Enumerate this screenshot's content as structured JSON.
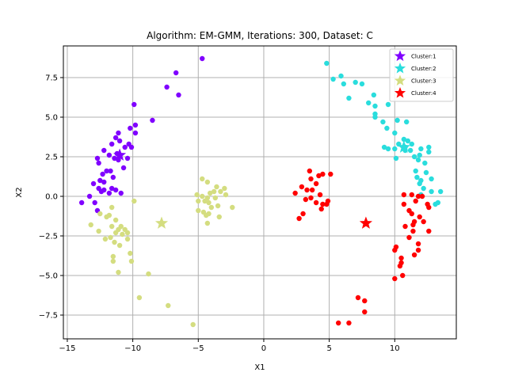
{
  "chart_data": {
    "type": "scatter",
    "title": "Algorithm: EM-GMM, Iterations: 300, Dataset: C",
    "xlabel": "X1",
    "ylabel": "X2",
    "xlim": [
      -15.3,
      14.7
    ],
    "ylim": [
      -9.0,
      9.5
    ],
    "xticks": [
      -15,
      -10,
      -5,
      0,
      5,
      10
    ],
    "yticks": [
      -7.5,
      -5.0,
      -2.5,
      0.0,
      2.5,
      5.0,
      7.5
    ],
    "grid": true,
    "legend_position": "top-right",
    "clusters": [
      {
        "name": "Cluster:1",
        "color": "#8000ff",
        "center": [
          -11.0,
          2.6
        ],
        "points": [
          [
            -4.7,
            8.7
          ],
          [
            -6.7,
            7.8
          ],
          [
            -7.4,
            6.9
          ],
          [
            -6.5,
            6.4
          ],
          [
            -9.9,
            5.8
          ],
          [
            -8.5,
            4.8
          ],
          [
            -9.8,
            4.5
          ],
          [
            -11.1,
            4.0
          ],
          [
            -10.2,
            4.3
          ],
          [
            -11.3,
            3.7
          ],
          [
            -11.0,
            3.5
          ],
          [
            -9.8,
            4.0
          ],
          [
            -10.3,
            3.3
          ],
          [
            -10.6,
            3.1
          ],
          [
            -11.6,
            3.3
          ],
          [
            -10.1,
            3.1
          ],
          [
            -12.2,
            2.9
          ],
          [
            -11.2,
            2.7
          ],
          [
            -11.8,
            2.6
          ],
          [
            -11.4,
            2.4
          ],
          [
            -10.4,
            2.4
          ],
          [
            -12.6,
            2.1
          ],
          [
            -12.7,
            2.4
          ],
          [
            -11.1,
            2.3
          ],
          [
            -10.7,
            1.8
          ],
          [
            -12.0,
            1.6
          ],
          [
            -11.7,
            1.6
          ],
          [
            -12.3,
            1.4
          ],
          [
            -11.5,
            1.2
          ],
          [
            -12.5,
            1.0
          ],
          [
            -12.2,
            0.9
          ],
          [
            -13.0,
            0.8
          ],
          [
            -12.6,
            0.5
          ],
          [
            -12.4,
            0.3
          ],
          [
            -11.6,
            0.5
          ],
          [
            -12.2,
            0.4
          ],
          [
            -11.3,
            0.4
          ],
          [
            -11.8,
            0.2
          ],
          [
            -10.9,
            0.2
          ],
          [
            -13.3,
            0.0
          ],
          [
            -13.9,
            -0.4
          ],
          [
            -12.9,
            -0.4
          ],
          [
            -12.7,
            -0.9
          ]
        ]
      },
      {
        "name": "Cluster:2",
        "color": "#2adddd",
        "center": [
          10.7,
          3.1
        ],
        "points": [
          [
            4.8,
            8.4
          ],
          [
            5.3,
            7.4
          ],
          [
            5.9,
            7.6
          ],
          [
            6.1,
            7.1
          ],
          [
            7.0,
            7.2
          ],
          [
            7.5,
            7.1
          ],
          [
            8.4,
            6.4
          ],
          [
            6.5,
            6.2
          ],
          [
            8.0,
            5.9
          ],
          [
            8.5,
            5.7
          ],
          [
            9.5,
            5.8
          ],
          [
            8.5,
            5.0
          ],
          [
            8.5,
            5.2
          ],
          [
            9.1,
            4.7
          ],
          [
            9.4,
            4.3
          ],
          [
            10.2,
            4.8
          ],
          [
            10.9,
            4.7
          ],
          [
            10.0,
            4.0
          ],
          [
            10.7,
            3.6
          ],
          [
            11.0,
            3.5
          ],
          [
            10.8,
            3.1
          ],
          [
            10.3,
            3.3
          ],
          [
            11.3,
            3.3
          ],
          [
            9.2,
            3.1
          ],
          [
            9.5,
            3.0
          ],
          [
            10.0,
            3.0
          ],
          [
            10.8,
            2.9
          ],
          [
            11.2,
            2.9
          ],
          [
            12.0,
            3.0
          ],
          [
            12.6,
            3.1
          ],
          [
            12.6,
            2.8
          ],
          [
            11.5,
            2.5
          ],
          [
            11.8,
            2.3
          ],
          [
            11.9,
            2.6
          ],
          [
            12.3,
            2.1
          ],
          [
            10.1,
            2.4
          ],
          [
            11.6,
            1.6
          ],
          [
            12.4,
            1.5
          ],
          [
            11.7,
            1.2
          ],
          [
            12.0,
            1.0
          ],
          [
            12.8,
            1.1
          ],
          [
            11.9,
            0.8
          ],
          [
            12.2,
            0.5
          ],
          [
            12.8,
            0.3
          ],
          [
            13.5,
            0.3
          ],
          [
            12.0,
            0.1
          ],
          [
            13.1,
            -0.5
          ],
          [
            13.3,
            -0.4
          ]
        ]
      },
      {
        "name": "Cluster:3",
        "color": "#d4dd80",
        "center": [
          -7.8,
          -1.7
        ],
        "points": [
          [
            -4.7,
            1.1
          ],
          [
            -4.3,
            0.9
          ],
          [
            -3.6,
            0.6
          ],
          [
            -3.0,
            0.5
          ],
          [
            -4.1,
            0.2
          ],
          [
            -3.8,
            0.3
          ],
          [
            -3.3,
            0.3
          ],
          [
            -4.7,
            0.0
          ],
          [
            -5.1,
            0.1
          ],
          [
            -2.9,
            0.1
          ],
          [
            -4.3,
            -0.1
          ],
          [
            -3.7,
            -0.1
          ],
          [
            -4.5,
            -0.3
          ],
          [
            -5.0,
            -0.3
          ],
          [
            -4.2,
            -0.4
          ],
          [
            -3.5,
            -0.6
          ],
          [
            -2.4,
            -0.7
          ],
          [
            -4.0,
            -0.7
          ],
          [
            -5.0,
            -0.9
          ],
          [
            -4.6,
            -1.0
          ],
          [
            -4.2,
            -1.1
          ],
          [
            -4.4,
            -1.2
          ],
          [
            -3.4,
            -1.3
          ],
          [
            -4.3,
            -1.7
          ],
          [
            -9.9,
            -0.3
          ],
          [
            -11.6,
            -0.7
          ],
          [
            -11.8,
            -1.2
          ],
          [
            -12.5,
            -1.1
          ],
          [
            -12.0,
            -1.3
          ],
          [
            -11.3,
            -1.5
          ],
          [
            -13.2,
            -1.8
          ],
          [
            -10.9,
            -1.9
          ],
          [
            -11.6,
            -1.9
          ],
          [
            -10.6,
            -2.1
          ],
          [
            -11.1,
            -2.1
          ],
          [
            -12.6,
            -2.2
          ],
          [
            -11.3,
            -2.3
          ],
          [
            -10.4,
            -2.3
          ],
          [
            -10.8,
            -2.4
          ],
          [
            -11.7,
            -2.6
          ],
          [
            -10.4,
            -2.7
          ],
          [
            -12.1,
            -2.7
          ],
          [
            -11.4,
            -2.9
          ],
          [
            -11.0,
            -3.1
          ],
          [
            -10.2,
            -3.6
          ],
          [
            -11.5,
            -3.8
          ],
          [
            -10.1,
            -4.1
          ],
          [
            -11.5,
            -4.1
          ],
          [
            -11.1,
            -4.8
          ],
          [
            -8.8,
            -4.9
          ],
          [
            -9.5,
            -6.4
          ],
          [
            -7.3,
            -6.9
          ],
          [
            -5.4,
            -8.1
          ]
        ]
      },
      {
        "name": "Cluster:4",
        "color": "#ff0000",
        "center": [
          7.8,
          -1.7
        ],
        "points": [
          [
            3.5,
            1.6
          ],
          [
            4.5,
            1.4
          ],
          [
            5.1,
            1.4
          ],
          [
            4.2,
            1.3
          ],
          [
            3.6,
            1.1
          ],
          [
            4.0,
            0.8
          ],
          [
            2.9,
            0.6
          ],
          [
            3.7,
            0.4
          ],
          [
            3.3,
            0.4
          ],
          [
            2.4,
            0.2
          ],
          [
            4.3,
            0.1
          ],
          [
            3.6,
            -0.1
          ],
          [
            3.2,
            -0.2
          ],
          [
            4.9,
            -0.3
          ],
          [
            4.0,
            -0.4
          ],
          [
            4.5,
            -0.5
          ],
          [
            4.8,
            -0.5
          ],
          [
            4.4,
            -0.8
          ],
          [
            3.0,
            -1.1
          ],
          [
            2.7,
            -1.4
          ],
          [
            10.7,
            0.1
          ],
          [
            11.3,
            0.1
          ],
          [
            11.8,
            0.0
          ],
          [
            12.1,
            0.0
          ],
          [
            11.6,
            -0.3
          ],
          [
            12.5,
            -0.5
          ],
          [
            12.6,
            -0.7
          ],
          [
            10.7,
            -0.5
          ],
          [
            11.1,
            -0.9
          ],
          [
            11.3,
            -1.1
          ],
          [
            11.9,
            -1.3
          ],
          [
            11.5,
            -1.6
          ],
          [
            11.4,
            -1.8
          ],
          [
            12.2,
            -1.6
          ],
          [
            10.8,
            -1.9
          ],
          [
            11.4,
            -2.2
          ],
          [
            12.6,
            -2.2
          ],
          [
            11.1,
            -2.6
          ],
          [
            11.8,
            -3.0
          ],
          [
            10.1,
            -3.2
          ],
          [
            10.0,
            -3.4
          ],
          [
            11.8,
            -3.4
          ],
          [
            11.5,
            -3.7
          ],
          [
            10.5,
            -3.9
          ],
          [
            10.5,
            -4.2
          ],
          [
            10.4,
            -4.4
          ],
          [
            10.6,
            -5.0
          ],
          [
            10.0,
            -5.2
          ],
          [
            7.2,
            -6.4
          ],
          [
            7.7,
            -6.6
          ],
          [
            7.7,
            -7.3
          ],
          [
            5.7,
            -8.0
          ],
          [
            6.5,
            -8.0
          ]
        ]
      }
    ]
  }
}
